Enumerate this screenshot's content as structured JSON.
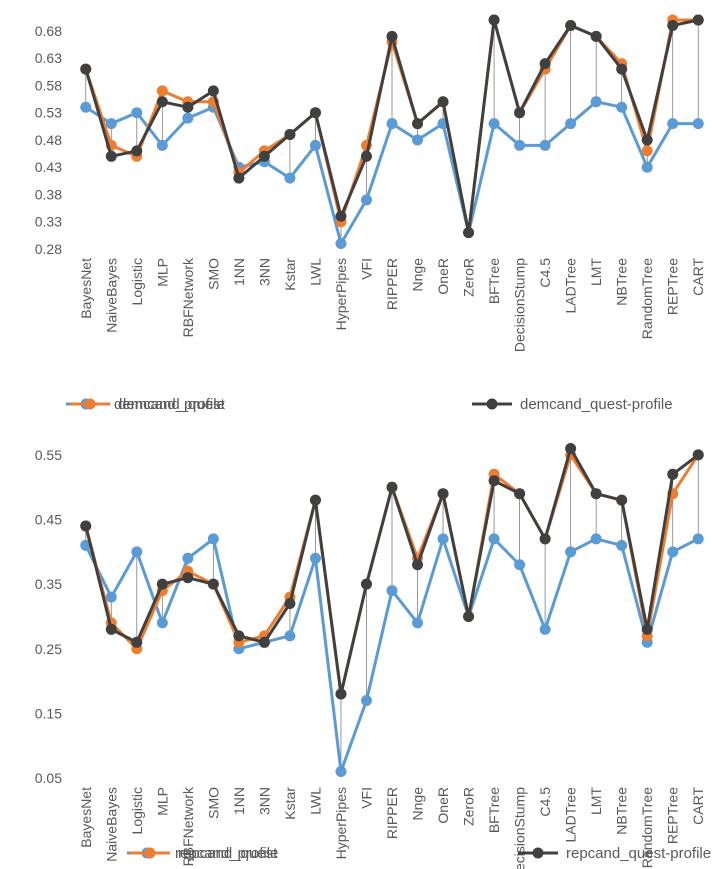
{
  "colors": {
    "profile": "#5B9BD5",
    "quest": "#ED7D31",
    "quest_profile": "#404040",
    "gridline": "#D9D9D9",
    "connector": "#7F7F7F",
    "tick_text": "#595959"
  },
  "chart_data": [
    {
      "type": "line",
      "title": "",
      "xlabel": "",
      "ylabel": "",
      "ylim": [
        0.28,
        0.7
      ],
      "yticks": [
        "0.28",
        "0.33",
        "0.38",
        "0.43",
        "0.48",
        "0.53",
        "0.58",
        "0.63",
        "0.68"
      ],
      "grid": false,
      "legend": "bottom",
      "categories": [
        "BayesNet",
        "NaiveBayes",
        "Logistic",
        "MLP",
        "RBFNetwork",
        "SMO",
        "1NN",
        "3NN",
        "Kstar",
        "LWL",
        "HyperPipes",
        "VFI",
        "RIPPER",
        "Nnge",
        "OneR",
        "ZeroR",
        "BFTree",
        "DecisionStump",
        "C4.5",
        "LADTree",
        "LMT",
        "NBTree",
        "RandomTree",
        "REPTree",
        "CART"
      ],
      "series": [
        {
          "name": "demcand_profile",
          "values": [
            0.54,
            0.51,
            0.53,
            0.47,
            0.52,
            0.54,
            0.43,
            0.44,
            0.41,
            0.47,
            0.29,
            0.37,
            0.51,
            0.48,
            0.51,
            0.31,
            0.51,
            0.47,
            0.47,
            0.51,
            0.55,
            0.54,
            0.43,
            0.51,
            0.51
          ]
        },
        {
          "name": "demcand_quest",
          "values": [
            0.61,
            0.47,
            0.45,
            0.57,
            0.55,
            0.55,
            0.42,
            0.46,
            0.49,
            0.53,
            0.33,
            0.47,
            0.66,
            0.51,
            0.55,
            0.31,
            0.7,
            0.53,
            0.61,
            0.69,
            0.67,
            0.62,
            0.46,
            0.7,
            0.7
          ]
        },
        {
          "name": "demcand_quest-profile",
          "values": [
            0.61,
            0.45,
            0.46,
            0.55,
            0.54,
            0.57,
            0.41,
            0.45,
            0.49,
            0.53,
            0.34,
            0.45,
            0.67,
            0.51,
            0.55,
            0.31,
            0.7,
            0.53,
            0.62,
            0.69,
            0.67,
            0.61,
            0.48,
            0.69,
            0.7
          ]
        }
      ]
    },
    {
      "type": "line",
      "title": "",
      "xlabel": "",
      "ylabel": "",
      "ylim": [
        0.05,
        0.57
      ],
      "yticks": [
        "0.05",
        "0.15",
        "0.25",
        "0.35",
        "0.45",
        "0.55"
      ],
      "grid": false,
      "legend": "bottom",
      "categories": [
        "BayesNet",
        "NaiveBayes",
        "Logistic",
        "MLP",
        "RBFNetwork",
        "SMO",
        "1NN",
        "3NN",
        "Kstar",
        "LWL",
        "HyperPipes",
        "VFI",
        "RIPPER",
        "Nnge",
        "OneR",
        "ZeroR",
        "BFTree",
        "DecisionStump",
        "C4.5",
        "LADTree",
        "LMT",
        "NBTree",
        "RandomTree",
        "REPTree",
        "CART"
      ],
      "series": [
        {
          "name": "repcand_profile",
          "values": [
            0.41,
            0.33,
            0.4,
            0.29,
            0.39,
            0.42,
            0.25,
            0.26,
            0.27,
            0.39,
            0.06,
            0.17,
            0.34,
            0.29,
            0.42,
            0.3,
            0.42,
            0.38,
            0.28,
            0.4,
            0.42,
            0.41,
            0.26,
            0.4,
            0.42
          ]
        },
        {
          "name": "repcand_quest",
          "values": [
            0.44,
            0.29,
            0.25,
            0.34,
            0.37,
            0.35,
            0.26,
            0.27,
            0.33,
            0.48,
            0.18,
            0.35,
            0.5,
            0.39,
            0.49,
            0.3,
            0.52,
            0.49,
            0.42,
            0.55,
            0.49,
            0.48,
            0.27,
            0.49,
            0.55
          ]
        },
        {
          "name": "repcand_quest-profile",
          "values": [
            0.44,
            0.28,
            0.26,
            0.35,
            0.36,
            0.35,
            0.27,
            0.26,
            0.32,
            0.48,
            0.18,
            0.35,
            0.5,
            0.38,
            0.49,
            0.3,
            0.51,
            0.49,
            0.42,
            0.56,
            0.49,
            0.48,
            0.28,
            0.52,
            0.55
          ]
        }
      ]
    }
  ]
}
